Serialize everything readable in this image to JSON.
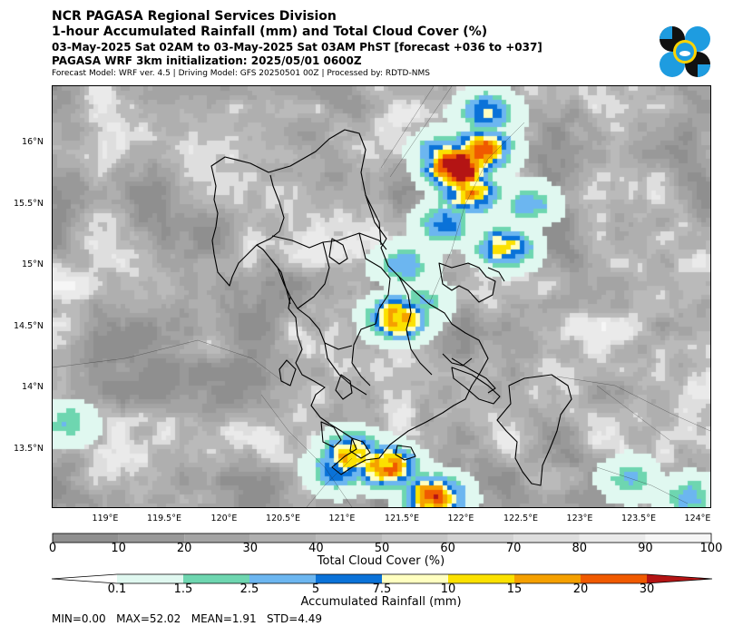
{
  "header": {
    "line1": "NCR PAGASA Regional Services Division",
    "line2": "1-hour Accumulated Rainfall (mm) and Total Cloud Cover (%)",
    "line3": "03-May-2025 Sat 02AM to 03-May-2025 Sat 03AM PhST [forecast +036 to +037]",
    "line4": "PAGASA WRF 3km initialization: 2025/05/01 0600Z",
    "line5": "Forecast Model: WRF ver. 4.5 | Driving Model: GFS 20250501 00Z | Processed by: RDTD-NMS"
  },
  "chart_data": {
    "type": "heatmap",
    "x_axis": {
      "range": [
        118.65,
        124.2
      ],
      "ticks": [
        119,
        119.5,
        120,
        120.5,
        121,
        121.5,
        122,
        122.5,
        123,
        123.5,
        124
      ],
      "tick_labels": [
        "119°E",
        "119.5°E",
        "120°E",
        "120.5°E",
        "121°E",
        "121.5°E",
        "122°E",
        "122.5°E",
        "123°E",
        "123.5°E",
        "124°E"
      ]
    },
    "y_axis": {
      "range": [
        13.05,
        16.5
      ],
      "ticks": [
        13.5,
        14,
        14.5,
        15,
        15.5,
        16
      ],
      "tick_labels": [
        "13.5°N",
        "14°N",
        "14.5°N",
        "15°N",
        "15.5°N",
        "16°N"
      ]
    },
    "cloud_cover": {
      "label": "Total Cloud Cover (%)",
      "bounds": [
        0,
        10,
        20,
        30,
        40,
        50,
        60,
        70,
        80,
        90,
        100
      ],
      "colors": [
        "#8f8f8f",
        "#999999",
        "#a4a4a4",
        "#afafaf",
        "#bababa",
        "#c6c6c6",
        "#d2d2d2",
        "#dedede",
        "#eaeaea",
        "#f6f6f6"
      ]
    },
    "rainfall": {
      "label": "Accumulated Rainfall (mm)",
      "bounds": [
        0.1,
        1.5,
        2.5,
        5,
        7.5,
        10,
        15,
        20,
        30
      ],
      "tick_labels": [
        "0.1",
        "1.5",
        "2.5",
        "5",
        "7.5",
        "10",
        "15",
        "20",
        "30"
      ],
      "colors": [
        "#ffffff",
        "#e0f8f0",
        "#6ed6b0",
        "#6cb6f0",
        "#0a72d8",
        "#ffffc0",
        "#fbe100",
        "#f5a000",
        "#f05a00",
        "#b41414"
      ]
    },
    "rain_cells": [
      {
        "lon": 122.05,
        "lat": 15.85,
        "max": 52.02
      },
      {
        "lon": 122.25,
        "lat": 16.0,
        "max": 25
      },
      {
        "lon": 122.15,
        "lat": 15.65,
        "max": 18
      },
      {
        "lon": 121.95,
        "lat": 15.95,
        "max": 12
      },
      {
        "lon": 122.45,
        "lat": 15.2,
        "max": 12
      },
      {
        "lon": 122.3,
        "lat": 16.3,
        "max": 8
      },
      {
        "lon": 121.95,
        "lat": 15.4,
        "max": 6
      },
      {
        "lon": 121.6,
        "lat": 15.05,
        "max": 4
      },
      {
        "lon": 121.55,
        "lat": 14.62,
        "max": 20
      },
      {
        "lon": 121.75,
        "lat": 14.75,
        "max": 3
      },
      {
        "lon": 121.15,
        "lat": 13.5,
        "max": 16
      },
      {
        "lon": 121.05,
        "lat": 13.37,
        "max": 8
      },
      {
        "lon": 121.45,
        "lat": 13.4,
        "max": 22
      },
      {
        "lon": 121.85,
        "lat": 13.15,
        "max": 25
      },
      {
        "lon": 122.65,
        "lat": 15.55,
        "max": 4
      },
      {
        "lon": 123.5,
        "lat": 13.3,
        "max": 3
      },
      {
        "lon": 124.0,
        "lat": 13.15,
        "max": 4
      },
      {
        "lon": 118.75,
        "lat": 13.75,
        "max": 3
      }
    ],
    "stats": {
      "min": 0.0,
      "max": 52.02,
      "mean": 1.91,
      "std": 4.49
    }
  },
  "stats_text": "MIN=0.00   MAX=52.02   MEAN=1.91   STD=4.49",
  "logo": {
    "name": "pagasa-logo",
    "colors": [
      "#111111",
      "#1e9ce0",
      "#ffd400"
    ]
  }
}
